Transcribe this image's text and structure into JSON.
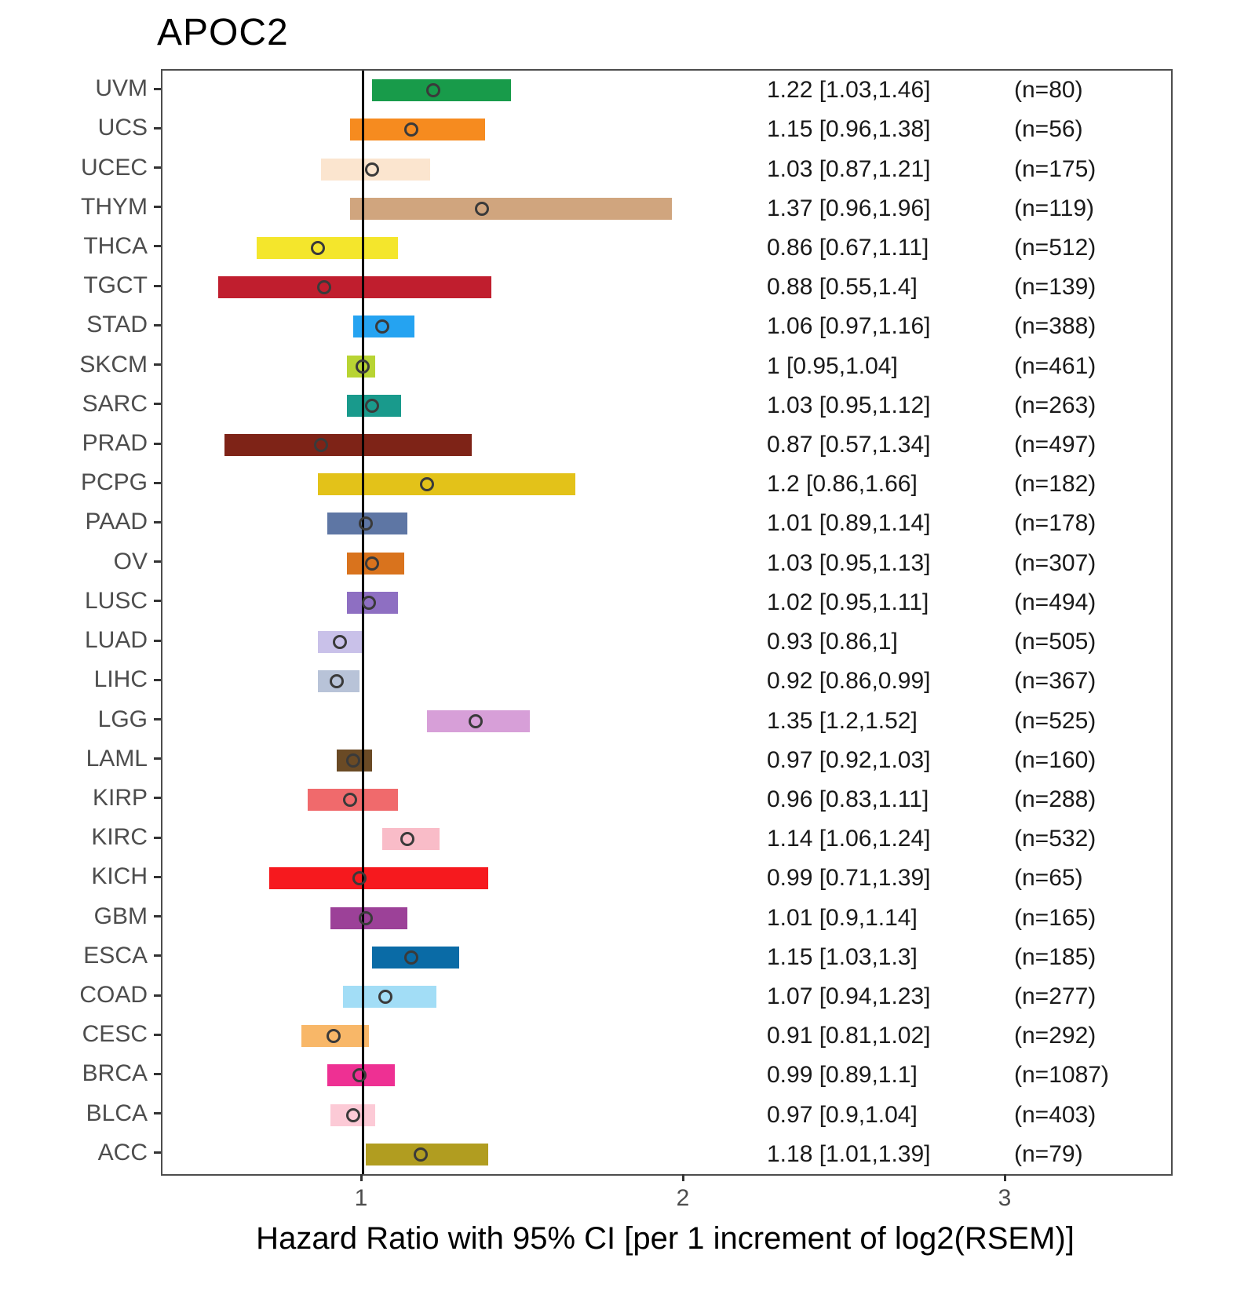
{
  "chart_data": {
    "type": "scatter",
    "variant": "forest-plot-hazard-ratio",
    "title": "APOC2",
    "xlabel": "Hazard Ratio with 95% CI [per 1 increment of log2(RSEM)]",
    "x_ticks": [
      "1",
      "2",
      "3"
    ],
    "xlim": [
      0.38,
      3.51
    ],
    "reference_line_x": 1,
    "grid": false,
    "legend_position": "none",
    "rows": [
      {
        "label": "UVM",
        "hr": 1.22,
        "lo": 1.03,
        "hi": 1.46,
        "n": 80,
        "ci_text": "1.22 [1.03,1.46]",
        "n_text": "(n=80)",
        "color": "#189b4a"
      },
      {
        "label": "UCS",
        "hr": 1.15,
        "lo": 0.96,
        "hi": 1.38,
        "n": 56,
        "ci_text": "1.15 [0.96,1.38]",
        "n_text": "(n=56)",
        "color": "#f68b1f"
      },
      {
        "label": "UCEC",
        "hr": 1.03,
        "lo": 0.87,
        "hi": 1.21,
        "n": 175,
        "ci_text": "1.03 [0.87,1.21]",
        "n_text": "(n=175)",
        "color": "#fbe5cf"
      },
      {
        "label": "THYM",
        "hr": 1.37,
        "lo": 0.96,
        "hi": 1.96,
        "n": 119,
        "ci_text": "1.37 [0.96,1.96]",
        "n_text": "(n=119)",
        "color": "#d0a57e"
      },
      {
        "label": "THCA",
        "hr": 0.86,
        "lo": 0.67,
        "hi": 1.11,
        "n": 512,
        "ci_text": "0.86 [0.67,1.11]",
        "n_text": "(n=512)",
        "color": "#f4e62c"
      },
      {
        "label": "TGCT",
        "hr": 0.88,
        "lo": 0.55,
        "hi": 1.4,
        "n": 139,
        "ci_text": "0.88 [0.55,1.4]",
        "n_text": "(n=139)",
        "color": "#c01e2e"
      },
      {
        "label": "STAD",
        "hr": 1.06,
        "lo": 0.97,
        "hi": 1.16,
        "n": 388,
        "ci_text": "1.06 [0.97,1.16]",
        "n_text": "(n=388)",
        "color": "#25a3f1"
      },
      {
        "label": "SKCM",
        "hr": 1.0,
        "lo": 0.95,
        "hi": 1.04,
        "n": 461,
        "ci_text": "1 [0.95,1.04]",
        "n_text": "(n=461)",
        "color": "#b8d433"
      },
      {
        "label": "SARC",
        "hr": 1.03,
        "lo": 0.95,
        "hi": 1.12,
        "n": 263,
        "ci_text": "1.03 [0.95,1.12]",
        "n_text": "(n=263)",
        "color": "#199a8c"
      },
      {
        "label": "PRAD",
        "hr": 0.87,
        "lo": 0.57,
        "hi": 1.34,
        "n": 497,
        "ci_text": "0.87 [0.57,1.34]",
        "n_text": "(n=497)",
        "color": "#7e2317"
      },
      {
        "label": "PCPG",
        "hr": 1.2,
        "lo": 0.86,
        "hi": 1.66,
        "n": 182,
        "ci_text": "1.2 [0.86,1.66]",
        "n_text": "(n=182)",
        "color": "#e3c219"
      },
      {
        "label": "PAAD",
        "hr": 1.01,
        "lo": 0.89,
        "hi": 1.14,
        "n": 178,
        "ci_text": "1.01 [0.89,1.14]",
        "n_text": "(n=178)",
        "color": "#5e76a4"
      },
      {
        "label": "OV",
        "hr": 1.03,
        "lo": 0.95,
        "hi": 1.13,
        "n": 307,
        "ci_text": "1.03 [0.95,1.13]",
        "n_text": "(n=307)",
        "color": "#d9731d"
      },
      {
        "label": "LUSC",
        "hr": 1.02,
        "lo": 0.95,
        "hi": 1.11,
        "n": 494,
        "ci_text": "1.02 [0.95,1.11]",
        "n_text": "(n=494)",
        "color": "#8e6fc2"
      },
      {
        "label": "LUAD",
        "hr": 0.93,
        "lo": 0.86,
        "hi": 1.0,
        "n": 505,
        "ci_text": "0.93 [0.86,1]",
        "n_text": "(n=505)",
        "color": "#c9c1e9"
      },
      {
        "label": "LIHC",
        "hr": 0.92,
        "lo": 0.86,
        "hi": 0.99,
        "n": 367,
        "ci_text": "0.92 [0.86,0.99]",
        "n_text": "(n=367)",
        "color": "#b8c3d8"
      },
      {
        "label": "LGG",
        "hr": 1.35,
        "lo": 1.2,
        "hi": 1.52,
        "n": 525,
        "ci_text": "1.35 [1.2,1.52]",
        "n_text": "(n=525)",
        "color": "#d79fd8"
      },
      {
        "label": "LAML",
        "hr": 0.97,
        "lo": 0.92,
        "hi": 1.03,
        "n": 160,
        "ci_text": "0.97 [0.92,1.03]",
        "n_text": "(n=160)",
        "color": "#6a4a25"
      },
      {
        "label": "KIRP",
        "hr": 0.96,
        "lo": 0.83,
        "hi": 1.11,
        "n": 288,
        "ci_text": "0.96 [0.83,1.11]",
        "n_text": "(n=288)",
        "color": "#f06a6c"
      },
      {
        "label": "KIRC",
        "hr": 1.14,
        "lo": 1.06,
        "hi": 1.24,
        "n": 532,
        "ci_text": "1.14 [1.06,1.24]",
        "n_text": "(n=532)",
        "color": "#f9bcc8"
      },
      {
        "label": "KICH",
        "hr": 0.99,
        "lo": 0.71,
        "hi": 1.39,
        "n": 65,
        "ci_text": "0.99 [0.71,1.39]",
        "n_text": "(n=65)",
        "color": "#f6191e"
      },
      {
        "label": "GBM",
        "hr": 1.01,
        "lo": 0.9,
        "hi": 1.14,
        "n": 165,
        "ci_text": "1.01 [0.9,1.14]",
        "n_text": "(n=165)",
        "color": "#9c4198"
      },
      {
        "label": "ESCA",
        "hr": 1.15,
        "lo": 1.03,
        "hi": 1.3,
        "n": 185,
        "ci_text": "1.15 [1.03,1.3]",
        "n_text": "(n=185)",
        "color": "#0a6ba6"
      },
      {
        "label": "COAD",
        "hr": 1.07,
        "lo": 0.94,
        "hi": 1.23,
        "n": 277,
        "ci_text": "1.07 [0.94,1.23]",
        "n_text": "(n=277)",
        "color": "#a2ddf6"
      },
      {
        "label": "CESC",
        "hr": 0.91,
        "lo": 0.81,
        "hi": 1.02,
        "n": 292,
        "ci_text": "0.91 [0.81,1.02]",
        "n_text": "(n=292)",
        "color": "#f8b768"
      },
      {
        "label": "BRCA",
        "hr": 0.99,
        "lo": 0.89,
        "hi": 1.1,
        "n": 1087,
        "ci_text": "0.99 [0.89,1.1]",
        "n_text": "(n=1087)",
        "color": "#ee3093"
      },
      {
        "label": "BLCA",
        "hr": 0.97,
        "lo": 0.9,
        "hi": 1.04,
        "n": 403,
        "ci_text": "0.97 [0.9,1.04]",
        "n_text": "(n=403)",
        "color": "#fccad6"
      },
      {
        "label": "ACC",
        "hr": 1.18,
        "lo": 1.01,
        "hi": 1.39,
        "n": 79,
        "ci_text": "1.18 [1.01,1.39]",
        "n_text": "(n=79)",
        "color": "#b19d20"
      }
    ]
  }
}
